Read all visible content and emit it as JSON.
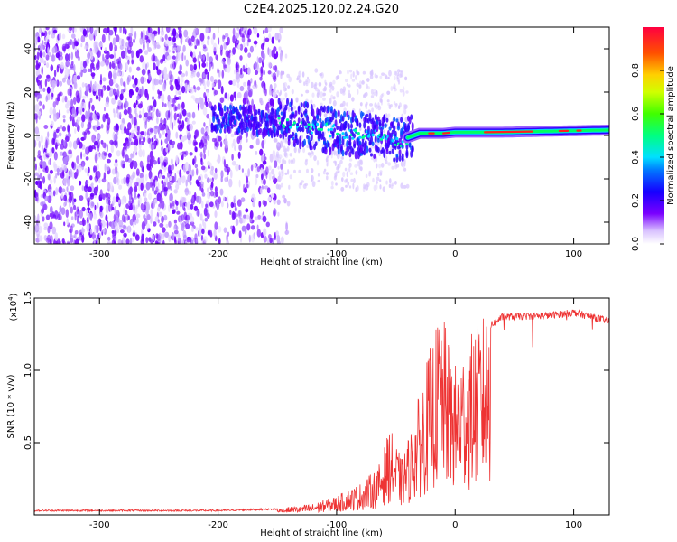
{
  "title": "C2E4.2025.120.02.24.G20",
  "chart_data": [
    {
      "type": "heatmap",
      "name": "spectrogram",
      "xlabel": "Height of straight line (km)",
      "ylabel": "Frequency (Hz)",
      "xlim": [
        -355,
        130
      ],
      "ylim": [
        -50,
        50
      ],
      "xticks": [
        -300,
        -200,
        -100,
        0,
        100
      ],
      "yticks": [
        -40,
        -20,
        0,
        20,
        40
      ],
      "colorbar": {
        "label": "Normalized spectral amplitude",
        "range": [
          0,
          1
        ],
        "ticks": [
          "0.0",
          "0.2",
          "0.4",
          "0.6",
          "0.8"
        ]
      },
      "signal_trace": [
        {
          "x": -205,
          "y": 8
        },
        {
          "x": -180,
          "y": 7
        },
        {
          "x": -160,
          "y": 6
        },
        {
          "x": -140,
          "y": 6
        },
        {
          "x": -120,
          "y": 4
        },
        {
          "x": -100,
          "y": 2
        },
        {
          "x": -80,
          "y": 0
        },
        {
          "x": -60,
          "y": -1
        },
        {
          "x": -45,
          "y": -2
        },
        {
          "x": -30,
          "y": 1
        },
        {
          "x": -10,
          "y": 1
        },
        {
          "x": 0,
          "y": 1.5
        },
        {
          "x": 40,
          "y": 1.5
        },
        {
          "x": 80,
          "y": 2
        },
        {
          "x": 130,
          "y": 2.5
        }
      ]
    },
    {
      "type": "line",
      "name": "snr",
      "xlabel": "Height of straight line (km)",
      "ylabel": "SNR (10 * v/v)",
      "multiplier": "(x10",
      "multiplier_exp": "4",
      "multiplier_close": ")",
      "xlim": [
        -355,
        130
      ],
      "ylim": [
        0,
        1.5
      ],
      "xticks": [
        -300,
        -200,
        -100,
        0,
        100
      ],
      "yticks": [
        0.5,
        1.0,
        1.5
      ],
      "ytick_labels": [
        "0.5",
        "1.0",
        "1.5"
      ],
      "color": "#ee3333",
      "envelope": [
        {
          "x": -355,
          "y": 0.03
        },
        {
          "x": -200,
          "y": 0.03
        },
        {
          "x": -150,
          "y": 0.04
        },
        {
          "x": -120,
          "y": 0.07
        },
        {
          "x": -100,
          "y": 0.12
        },
        {
          "x": -80,
          "y": 0.2
        },
        {
          "x": -65,
          "y": 0.3
        },
        {
          "x": -55,
          "y": 0.55
        },
        {
          "x": -45,
          "y": 0.35
        },
        {
          "x": -35,
          "y": 0.6
        },
        {
          "x": -25,
          "y": 0.95
        },
        {
          "x": -12,
          "y": 1.3
        },
        {
          "x": 0,
          "y": 0.95
        },
        {
          "x": 10,
          "y": 1.1
        },
        {
          "x": 25,
          "y": 1.28
        },
        {
          "x": 40,
          "y": 1.37
        },
        {
          "x": 80,
          "y": 1.38
        },
        {
          "x": 100,
          "y": 1.4
        },
        {
          "x": 130,
          "y": 1.34
        }
      ]
    }
  ]
}
